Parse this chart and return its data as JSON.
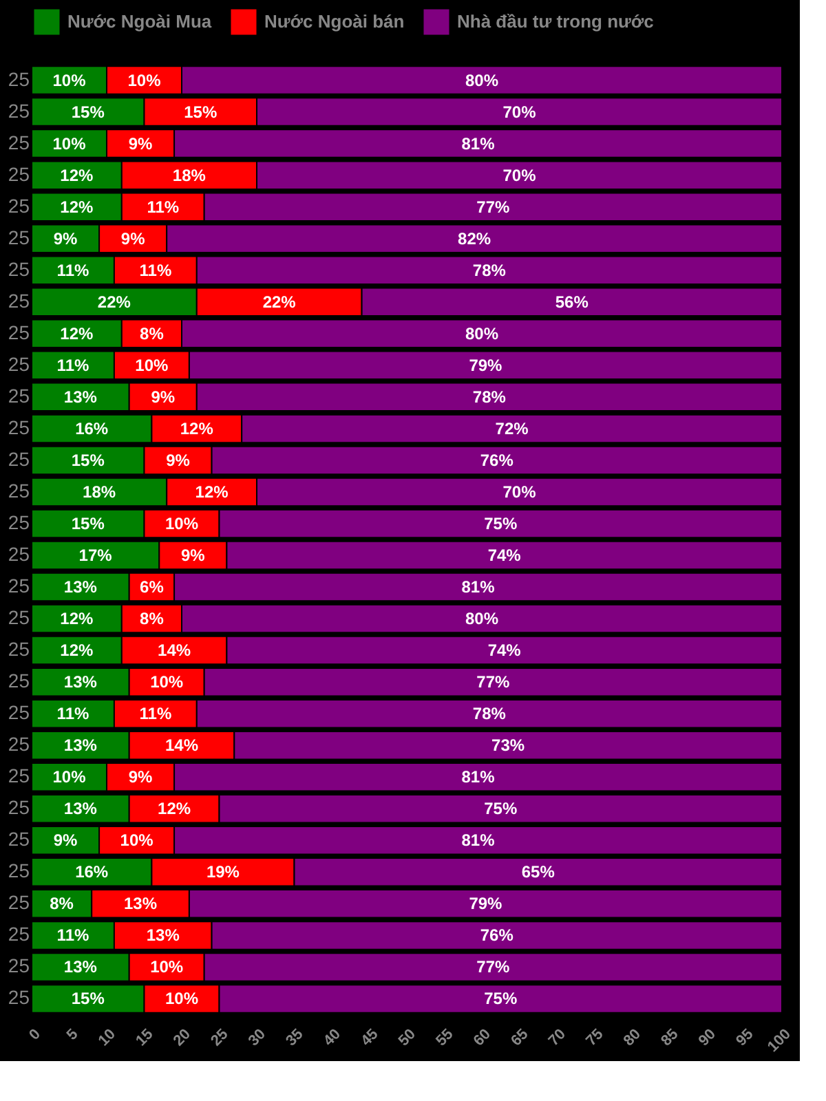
{
  "chart_data": {
    "type": "bar",
    "orientation": "horizontal",
    "stacked": true,
    "legend": "top",
    "grid": false,
    "categories": [
      "25",
      "25",
      "25",
      "25",
      "25",
      "25",
      "25",
      "25",
      "25",
      "25",
      "25",
      "25",
      "25",
      "25",
      "25",
      "25",
      "25",
      "25",
      "25",
      "25",
      "25",
      "25",
      "25",
      "25",
      "25",
      "25",
      "25",
      "25",
      "25",
      "25"
    ],
    "xlim": [
      0,
      100
    ],
    "xticks": [
      0,
      5,
      10,
      15,
      20,
      25,
      30,
      35,
      40,
      45,
      50,
      55,
      60,
      65,
      70,
      75,
      80,
      85,
      90,
      95,
      100
    ],
    "series": [
      {
        "name": "Nước Ngoài Mua",
        "color": "#008000",
        "values": [
          10,
          15,
          10,
          12,
          12,
          9,
          11,
          22,
          12,
          11,
          13,
          16,
          15,
          18,
          15,
          17,
          13,
          12,
          12,
          13,
          11,
          13,
          10,
          13,
          9,
          16,
          8,
          11,
          13,
          15
        ],
        "value_labels": [
          "10%",
          "15%",
          "10%",
          "12%",
          "12%",
          "9%",
          "11%",
          "22%",
          "12%",
          "11%",
          "13%",
          "16%",
          "15%",
          "18%",
          "15%",
          "17%",
          "13%",
          "12%",
          "12%",
          "13%",
          "11%",
          "13%",
          "10%",
          "13%",
          "9%",
          "16%",
          "8%",
          "11%",
          "13%",
          "15%"
        ]
      },
      {
        "name": "Nước Ngoài bán",
        "color": "#ff0000",
        "values": [
          10,
          15,
          9,
          18,
          11,
          9,
          11,
          22,
          8,
          10,
          9,
          12,
          9,
          12,
          10,
          9,
          6,
          8,
          14,
          10,
          11,
          14,
          9,
          12,
          10,
          19,
          13,
          13,
          10,
          10
        ],
        "value_labels": [
          "10%",
          "15%",
          "9%",
          "18%",
          "11%",
          "9%",
          "11%",
          "22%",
          "8%",
          "10%",
          "9%",
          "12%",
          "9%",
          "12%",
          "10%",
          "9%",
          "6%",
          "8%",
          "14%",
          "10%",
          "11%",
          "14%",
          "9%",
          "12%",
          "10%",
          "19%",
          "13%",
          "13%",
          "10%",
          "10%"
        ]
      },
      {
        "name": "Nhà đầu tư trong nước",
        "color": "#800080",
        "values": [
          80,
          70,
          81,
          70,
          77,
          82,
          78,
          56,
          80,
          79,
          78,
          72,
          76,
          70,
          75,
          74,
          81,
          80,
          74,
          77,
          78,
          73,
          81,
          75,
          81,
          65,
          79,
          76,
          77,
          75
        ],
        "value_labels": [
          "80%",
          "70%",
          "81%",
          "70%",
          "77%",
          "82%",
          "78%",
          "56%",
          "80%",
          "79%",
          "78%",
          "72%",
          "76%",
          "70%",
          "75%",
          "74%",
          "81%",
          "80%",
          "74%",
          "77%",
          "78%",
          "73%",
          "81%",
          "75%",
          "81%",
          "65%",
          "79%",
          "76%",
          "77%",
          "75%"
        ]
      }
    ]
  }
}
